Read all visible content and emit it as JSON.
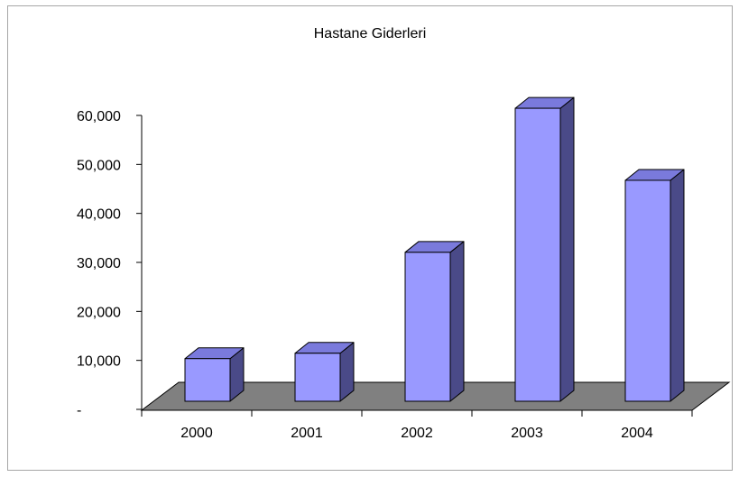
{
  "chart_data": {
    "type": "bar",
    "three_d": true,
    "title": "Hastane Giderleri",
    "categories": [
      "2000",
      "2001",
      "2002",
      "2003",
      "2004"
    ],
    "values": [
      8700,
      9800,
      30400,
      59800,
      45100
    ],
    "ylim": [
      0,
      60000
    ],
    "yticks": [
      {
        "value": 0,
        "label": "-"
      },
      {
        "value": 10000,
        "label": "10,000"
      },
      {
        "value": 20000,
        "label": "20,000"
      },
      {
        "value": 30000,
        "label": "30,000"
      },
      {
        "value": 40000,
        "label": "40,000"
      },
      {
        "value": 50000,
        "label": "50,000"
      },
      {
        "value": 60000,
        "label": "60,000"
      }
    ],
    "grid": false
  },
  "colors": {
    "bar_front": "#9999FF",
    "bar_top": "#7A7ADC",
    "bar_side": "#4A4A88",
    "floor": "#808080",
    "outline": "#000000",
    "border": "#A6A6A6",
    "background": "#FFFFFF"
  }
}
